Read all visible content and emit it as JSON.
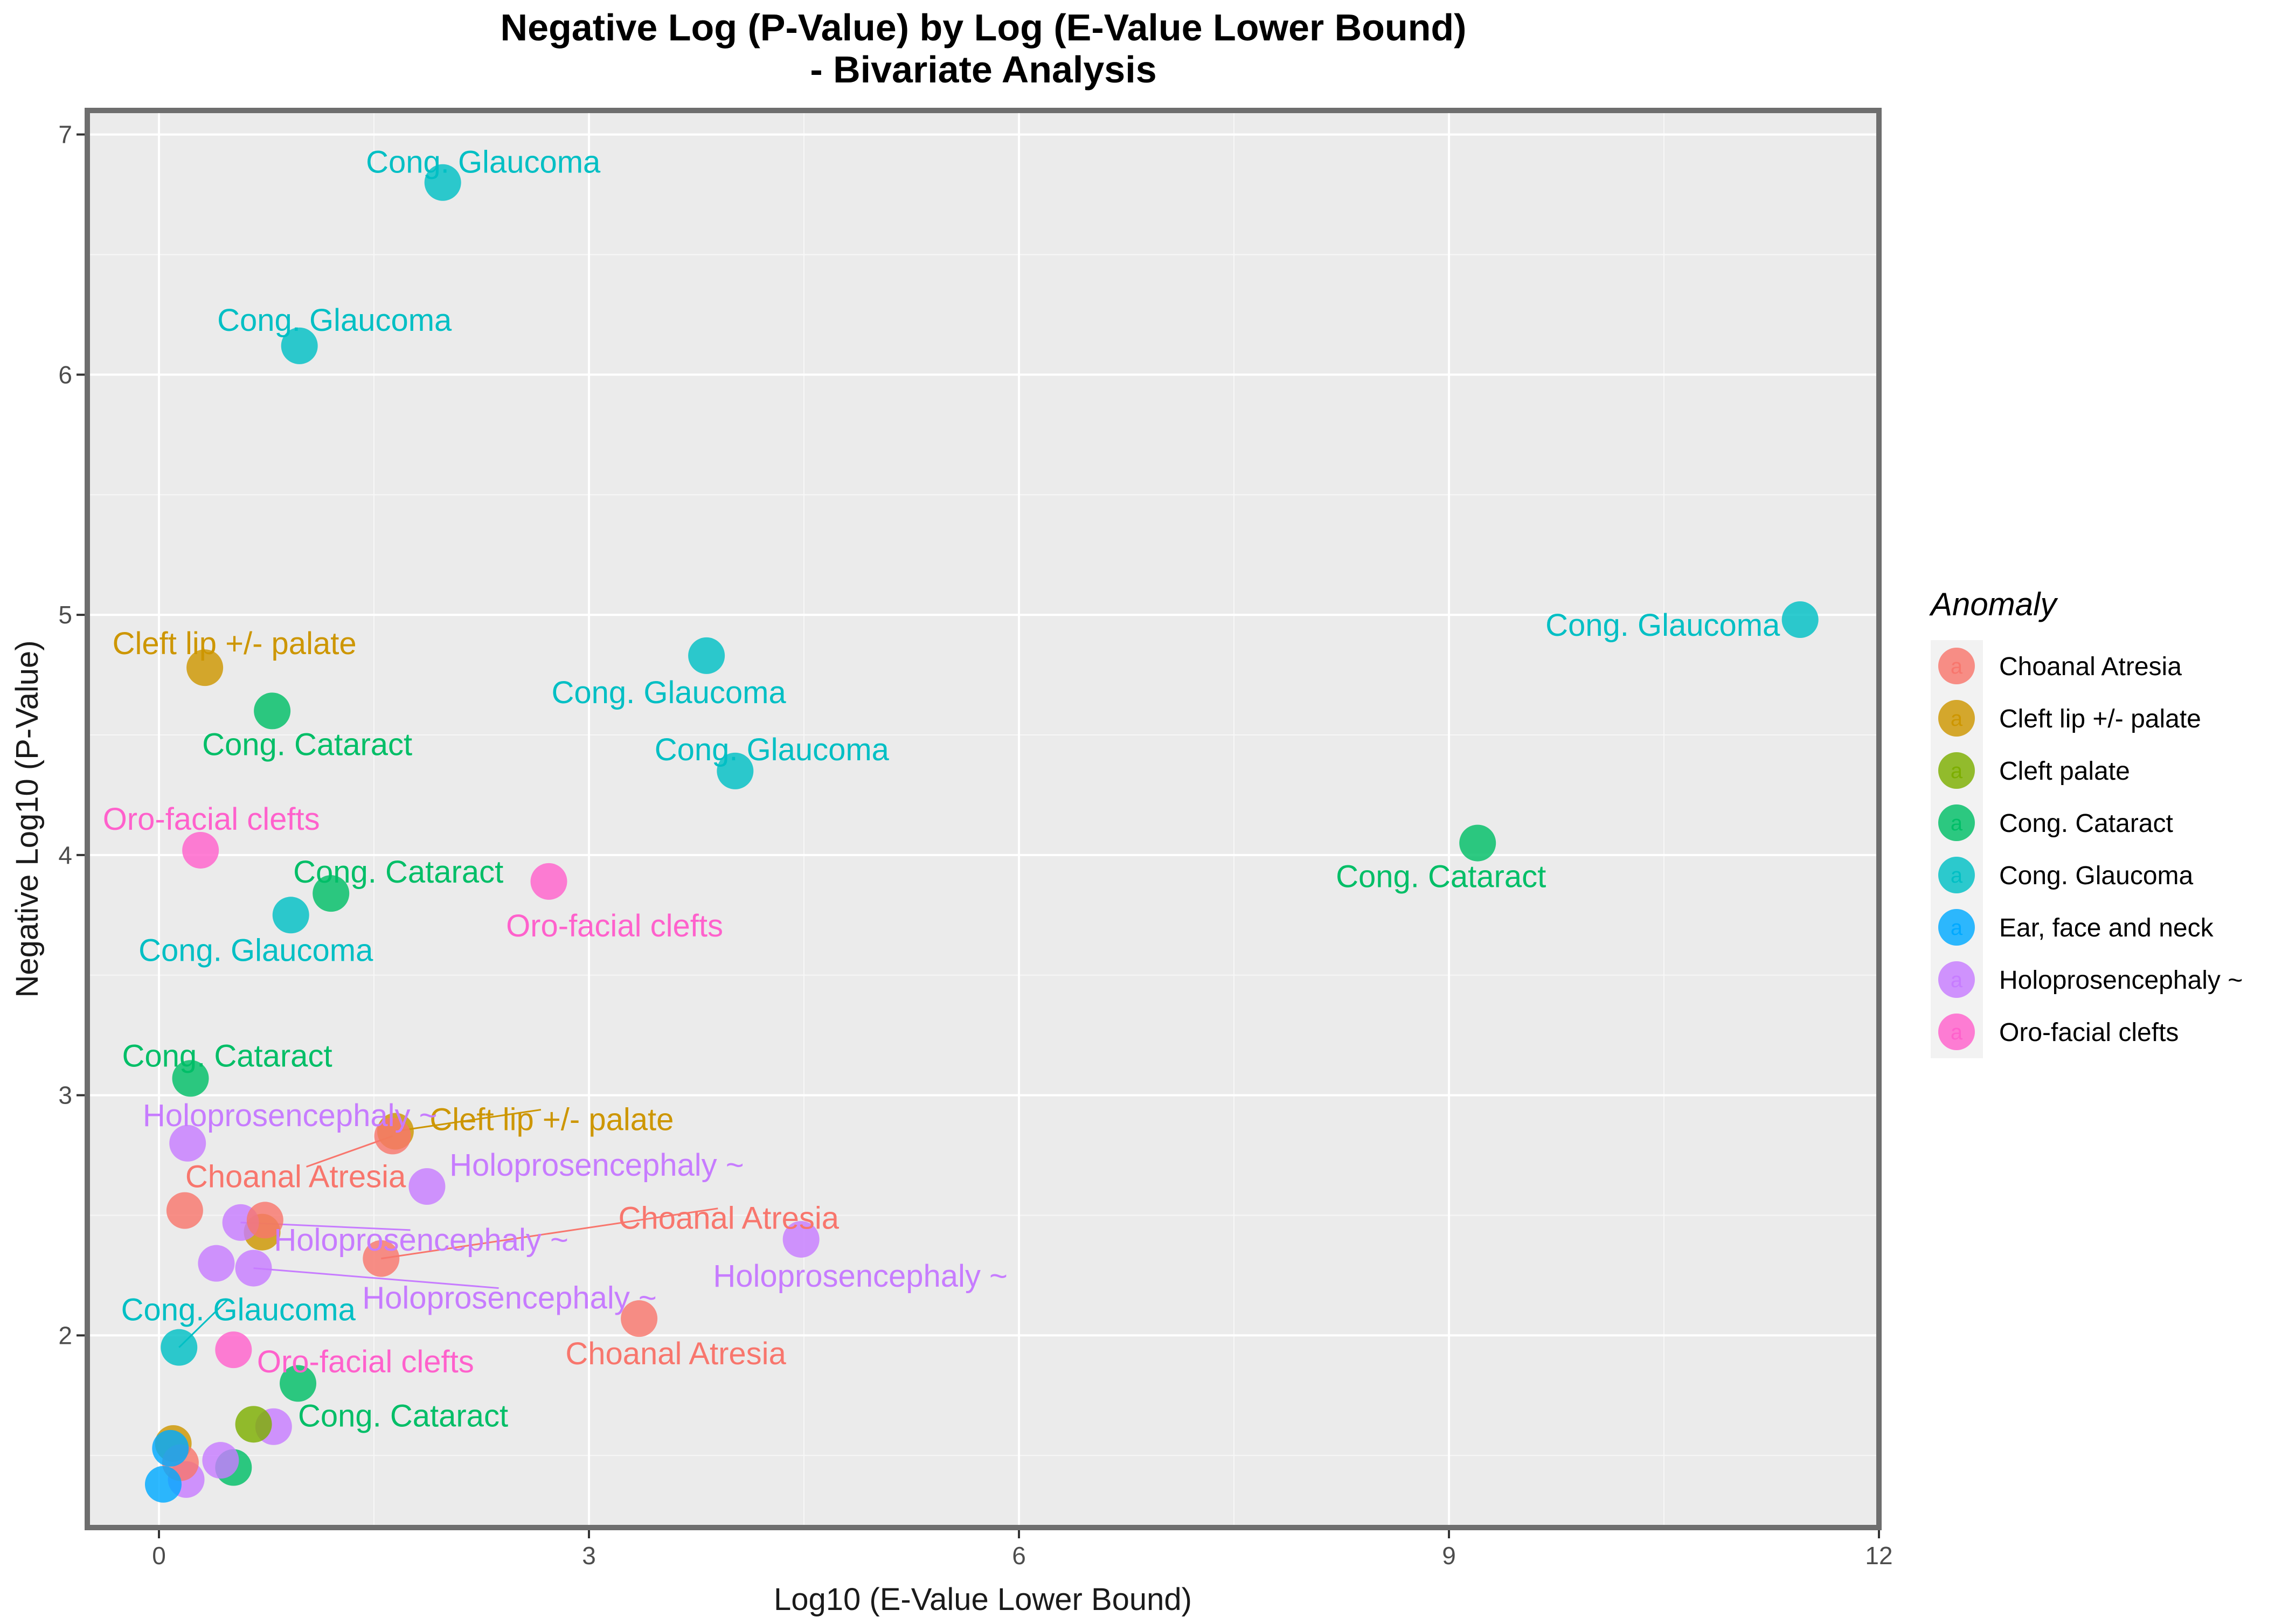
{
  "chart_data": {
    "type": "scatter",
    "title": "Negative Log (P-Value) by Log (E-Value Lower Bound)",
    "subtitle": "- Bivariate Analysis",
    "xlabel": "Log10 (E-Value Lower Bound)",
    "ylabel": "Negative Log10 (P-Value)",
    "xlim": [
      -0.5,
      12
    ],
    "ylim": [
      1.2,
      7.1
    ],
    "x_ticks": [
      0,
      3,
      6,
      9,
      12
    ],
    "y_ticks": [
      2,
      3,
      4,
      5,
      6,
      7
    ],
    "grid": true,
    "legend": {
      "title": "Anomaly",
      "position": "right",
      "key_glyph": "a",
      "entries": [
        {
          "name": "Choanal Atresia",
          "color": "#F8766D"
        },
        {
          "name": "Cleft lip +/- palate",
          "color": "#CD9600"
        },
        {
          "name": "Cleft palate",
          "color": "#7CAE00"
        },
        {
          "name": "Cong. Cataract",
          "color": "#00BE67"
        },
        {
          "name": "Cong. Glaucoma",
          "color": "#00BFC4"
        },
        {
          "name": "Ear, face and neck",
          "color": "#00A9FF"
        },
        {
          "name": "Holoprosencephaly ~",
          "color": "#C77CFF"
        },
        {
          "name": "Oro-facial clefts",
          "color": "#FF61CC"
        }
      ]
    },
    "points": [
      {
        "series": "Cong. Glaucoma",
        "x": 1.98,
        "y": 6.8,
        "label": "Cong. Glaucoma"
      },
      {
        "series": "Cong. Glaucoma",
        "x": 0.98,
        "y": 6.12,
        "label": "Cong. Glaucoma"
      },
      {
        "series": "Cong. Glaucoma",
        "x": 11.45,
        "y": 4.98,
        "label": "Cong. Glaucoma"
      },
      {
        "series": "Cong. Glaucoma",
        "x": 3.82,
        "y": 4.83,
        "label": "Cong. Glaucoma"
      },
      {
        "series": "Cong. Glaucoma",
        "x": 4.02,
        "y": 4.35,
        "label": "Cong. Glaucoma"
      },
      {
        "series": "Cong. Glaucoma",
        "x": 0.92,
        "y": 3.75,
        "label": "Cong. Glaucoma"
      },
      {
        "series": "Cong. Glaucoma",
        "x": 0.14,
        "y": 1.95,
        "label": "Cong. Glaucoma"
      },
      {
        "series": "Cleft lip +/- palate",
        "x": 0.32,
        "y": 4.78,
        "label": "Cleft lip +/- palate"
      },
      {
        "series": "Cleft lip +/- palate",
        "x": 1.65,
        "y": 2.85,
        "label": "Cleft lip +/- palate"
      },
      {
        "series": "Cleft lip +/- palate",
        "x": 0.72,
        "y": 2.43,
        "label": ""
      },
      {
        "series": "Cleft lip +/- palate",
        "x": 0.1,
        "y": 1.55,
        "label": ""
      },
      {
        "series": "Cong. Cataract",
        "x": 0.79,
        "y": 4.6,
        "label": "Cong. Cataract"
      },
      {
        "series": "Cong. Cataract",
        "x": 1.2,
        "y": 3.84,
        "label": "Cong. Cataract"
      },
      {
        "series": "Cong. Cataract",
        "x": 9.2,
        "y": 4.05,
        "label": "Cong. Cataract"
      },
      {
        "series": "Cong. Cataract",
        "x": 0.22,
        "y": 3.07,
        "label": "Cong. Cataract"
      },
      {
        "series": "Cong. Cataract",
        "x": 0.97,
        "y": 1.8,
        "label": "Cong. Cataract"
      },
      {
        "series": "Cong. Cataract",
        "x": 0.52,
        "y": 1.45,
        "label": ""
      },
      {
        "series": "Oro-facial clefts",
        "x": 0.29,
        "y": 4.02,
        "label": "Oro-facial clefts"
      },
      {
        "series": "Oro-facial clefts",
        "x": 2.72,
        "y": 3.89,
        "label": "Oro-facial clefts"
      },
      {
        "series": "Oro-facial clefts",
        "x": 0.52,
        "y": 1.94,
        "label": "Oro-facial clefts"
      },
      {
        "series": "Holoprosencephaly ~",
        "x": 0.2,
        "y": 2.8,
        "label": "Holoprosencephaly ~"
      },
      {
        "series": "Holoprosencephaly ~",
        "x": 1.87,
        "y": 2.62,
        "label": "Holoprosencephaly ~"
      },
      {
        "series": "Holoprosencephaly ~",
        "x": 0.57,
        "y": 2.47,
        "label": "Holoprosencephaly ~"
      },
      {
        "series": "Holoprosencephaly ~",
        "x": 0.66,
        "y": 2.28,
        "label": "Holoprosencephaly ~"
      },
      {
        "series": "Holoprosencephaly ~",
        "x": 4.48,
        "y": 2.4,
        "label": "Holoprosencephaly ~"
      },
      {
        "series": "Holoprosencephaly ~",
        "x": 0.4,
        "y": 2.3,
        "label": ""
      },
      {
        "series": "Holoprosencephaly ~",
        "x": 0.8,
        "y": 1.62,
        "label": ""
      },
      {
        "series": "Holoprosencephaly ~",
        "x": 0.43,
        "y": 1.48,
        "label": ""
      },
      {
        "series": "Holoprosencephaly ~",
        "x": 0.19,
        "y": 1.4,
        "label": ""
      },
      {
        "series": "Choanal Atresia",
        "x": 1.63,
        "y": 2.83,
        "label": "Choanal Atresia"
      },
      {
        "series": "Choanal Atresia",
        "x": 0.18,
        "y": 2.52,
        "label": ""
      },
      {
        "series": "Choanal Atresia",
        "x": 0.74,
        "y": 2.48,
        "label": ""
      },
      {
        "series": "Choanal Atresia",
        "x": 1.55,
        "y": 2.32,
        "label": "Choanal Atresia"
      },
      {
        "series": "Choanal Atresia",
        "x": 3.35,
        "y": 2.07,
        "label": "Choanal Atresia"
      },
      {
        "series": "Choanal Atresia",
        "x": 0.15,
        "y": 1.47,
        "label": ""
      },
      {
        "series": "Cleft palate",
        "x": 0.66,
        "y": 1.63,
        "label": ""
      },
      {
        "series": "Ear, face and neck",
        "x": 0.08,
        "y": 1.53,
        "label": ""
      },
      {
        "series": "Ear, face and neck",
        "x": 0.03,
        "y": 1.38,
        "label": ""
      }
    ]
  }
}
